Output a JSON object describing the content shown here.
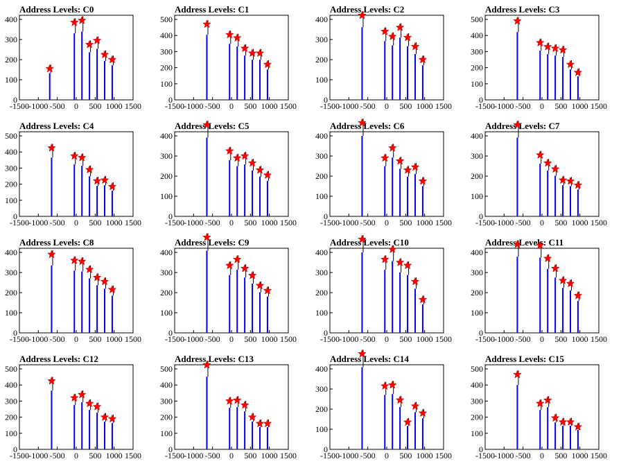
{
  "chart_data": [
    {
      "type": "bar",
      "title": "Address Levels: C0",
      "x": [
        -700,
        -50,
        150,
        350,
        550,
        750,
        950
      ],
      "values": [
        155,
        385,
        395,
        275,
        295,
        225,
        200
      ],
      "ymax": 400,
      "yticks": [
        0,
        100,
        200,
        300,
        400
      ],
      "xticks": [
        -1500,
        -1000,
        -500,
        0,
        500,
        1000,
        1500
      ]
    },
    {
      "type": "bar",
      "title": "Address Levels: C1",
      "x": [
        -650,
        -50,
        150,
        350,
        550,
        750,
        950
      ],
      "values": [
        470,
        405,
        385,
        320,
        290,
        290,
        220
      ],
      "ymax": 500,
      "yticks": [
        0,
        100,
        200,
        300,
        400,
        500
      ],
      "xticks": [
        -1500,
        -1000,
        -500,
        0,
        500,
        1000,
        1500
      ]
    },
    {
      "type": "bar",
      "title": "Address Levels: C2",
      "x": [
        -650,
        -50,
        150,
        350,
        550,
        750,
        950
      ],
      "values": [
        420,
        340,
        315,
        360,
        310,
        265,
        200
      ],
      "ymax": 400,
      "yticks": [
        0,
        100,
        200,
        300,
        400
      ],
      "xticks": [
        -1500,
        -1000,
        -500,
        0,
        500,
        1000,
        1500
      ]
    },
    {
      "type": "bar",
      "title": "Address Levels: C3",
      "x": [
        -650,
        -50,
        150,
        350,
        550,
        750,
        950
      ],
      "values": [
        490,
        355,
        330,
        320,
        310,
        220,
        170
      ],
      "ymax": 500,
      "yticks": [
        0,
        100,
        200,
        300,
        400,
        500
      ],
      "xticks": [
        -1500,
        -1000,
        -500,
        0,
        500,
        1000,
        1500
      ]
    },
    {
      "type": "bar",
      "title": "Address Levels: C4",
      "x": [
        -650,
        -50,
        150,
        350,
        550,
        750,
        950
      ],
      "values": [
        425,
        375,
        365,
        290,
        220,
        225,
        185
      ],
      "ymax": 500,
      "yticks": [
        0,
        100,
        200,
        300,
        400,
        500
      ],
      "xticks": [
        -1500,
        -1000,
        -500,
        0,
        500,
        1000,
        1500
      ]
    },
    {
      "type": "bar",
      "title": "Address Levels: C5",
      "x": [
        -650,
        -50,
        150,
        350,
        550,
        750,
        950
      ],
      "values": [
        455,
        325,
        290,
        300,
        265,
        230,
        205
      ],
      "ymax": 400,
      "yticks": [
        0,
        100,
        200,
        300,
        400
      ],
      "xticks": [
        -1500,
        -1000,
        -500,
        0,
        500,
        1000,
        1500
      ]
    },
    {
      "type": "bar",
      "title": "Address Levels: C6",
      "x": [
        -650,
        -50,
        150,
        350,
        550,
        750,
        950
      ],
      "values": [
        465,
        290,
        340,
        275,
        230,
        245,
        175
      ],
      "ymax": 400,
      "yticks": [
        0,
        100,
        200,
        300,
        400
      ],
      "xticks": [
        -1500,
        -1000,
        -500,
        0,
        500,
        1000,
        1500
      ]
    },
    {
      "type": "bar",
      "title": "Address Levels: C7",
      "x": [
        -650,
        -50,
        150,
        350,
        550,
        750,
        950
      ],
      "values": [
        455,
        305,
        265,
        235,
        180,
        175,
        155
      ],
      "ymax": 400,
      "yticks": [
        0,
        100,
        200,
        300,
        400
      ],
      "xticks": [
        -1500,
        -1000,
        -500,
        0,
        500,
        1000,
        1500
      ]
    },
    {
      "type": "bar",
      "title": "Address Levels: C8",
      "x": [
        -650,
        -50,
        150,
        350,
        550,
        750,
        950
      ],
      "values": [
        390,
        360,
        355,
        315,
        275,
        255,
        215
      ],
      "ymax": 400,
      "yticks": [
        0,
        100,
        200,
        300,
        400
      ],
      "xticks": [
        -1500,
        -1000,
        -500,
        0,
        500,
        1000,
        1500
      ]
    },
    {
      "type": "bar",
      "title": "Address Levels: C9",
      "x": [
        -650,
        -50,
        150,
        350,
        550,
        750,
        950
      ],
      "values": [
        475,
        335,
        365,
        320,
        285,
        235,
        210
      ],
      "ymax": 400,
      "yticks": [
        0,
        100,
        200,
        300,
        400
      ],
      "xticks": [
        -1500,
        -1000,
        -500,
        0,
        500,
        1000,
        1500
      ]
    },
    {
      "type": "bar",
      "title": "Address Levels: C10",
      "x": [
        -650,
        -50,
        150,
        350,
        550,
        750,
        950
      ],
      "values": [
        465,
        365,
        415,
        350,
        335,
        255,
        165
      ],
      "ymax": 400,
      "yticks": [
        0,
        100,
        200,
        300,
        400
      ],
      "xticks": [
        -1500,
        -1000,
        -500,
        0,
        500,
        1000,
        1500
      ]
    },
    {
      "type": "bar",
      "title": "Address Levels: C11",
      "x": [
        -650,
        -50,
        150,
        350,
        550,
        750,
        950
      ],
      "values": [
        440,
        435,
        370,
        320,
        260,
        245,
        185
      ],
      "ymax": 400,
      "yticks": [
        0,
        100,
        200,
        300,
        400
      ],
      "xticks": [
        -1500,
        -1000,
        -500,
        0,
        500,
        1000,
        1500
      ]
    },
    {
      "type": "bar",
      "title": "Address Levels: C12",
      "x": [
        -650,
        -50,
        150,
        350,
        550,
        750,
        950
      ],
      "values": [
        425,
        320,
        340,
        285,
        265,
        200,
        190
      ],
      "ymax": 500,
      "yticks": [
        0,
        100,
        200,
        300,
        400,
        500
      ],
      "xticks": [
        -1500,
        -1000,
        -500,
        0,
        500,
        1000,
        1500
      ]
    },
    {
      "type": "bar",
      "title": "Address Levels: C13",
      "x": [
        -650,
        -50,
        150,
        350,
        550,
        750,
        950
      ],
      "values": [
        525,
        300,
        305,
        275,
        200,
        160,
        160
      ],
      "ymax": 500,
      "yticks": [
        0,
        100,
        200,
        300,
        400,
        500
      ],
      "xticks": [
        -1500,
        -1000,
        -500,
        0,
        500,
        1000,
        1500
      ]
    },
    {
      "type": "bar",
      "title": "Address Levels: C14",
      "x": [
        -650,
        -50,
        150,
        350,
        550,
        750,
        950
      ],
      "values": [
        475,
        315,
        320,
        245,
        135,
        215,
        180
      ],
      "ymax": 400,
      "yticks": [
        0,
        100,
        200,
        300,
        400
      ],
      "xticks": [
        -1500,
        -1000,
        -500,
        0,
        500,
        1000,
        1500
      ]
    },
    {
      "type": "bar",
      "title": "Address Levels: C15",
      "x": [
        -650,
        -50,
        150,
        350,
        550,
        750,
        950
      ],
      "values": [
        465,
        285,
        305,
        195,
        170,
        170,
        140
      ],
      "ymax": 500,
      "yticks": [
        0,
        100,
        200,
        300,
        400,
        500
      ],
      "xticks": [
        -1500,
        -1000,
        -500,
        0,
        500,
        1000,
        1500
      ]
    }
  ],
  "colors": {
    "bar": "#0000ff",
    "marker": "#ff0000",
    "axis": "#000000",
    "background": "#ffffff"
  },
  "marker_icon": "star-icon",
  "xlim": [
    -1500,
    1500
  ]
}
